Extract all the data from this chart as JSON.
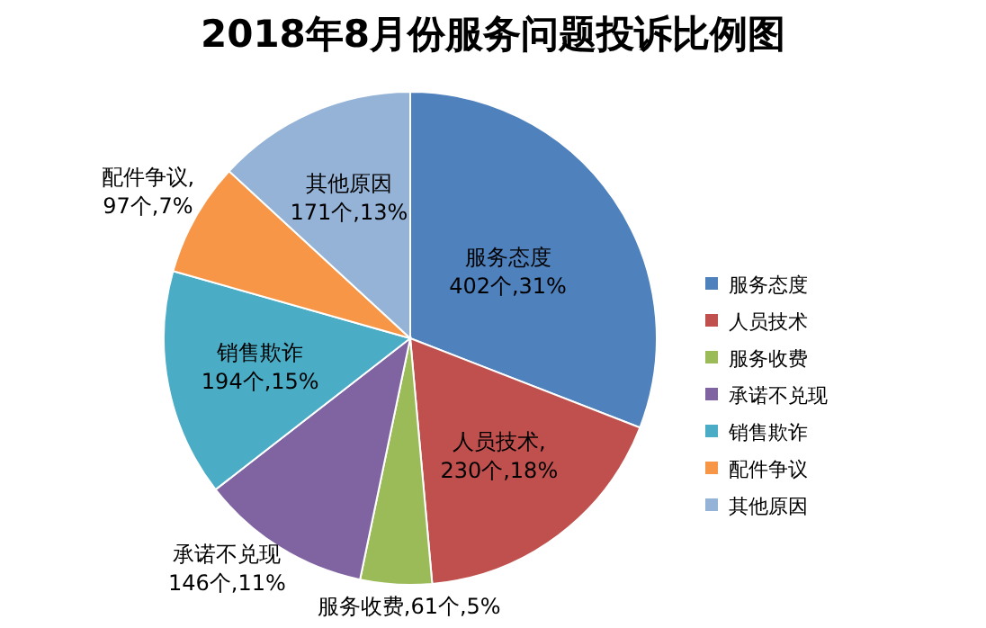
{
  "chart_data": {
    "type": "pie",
    "title": "2018年8月份服务问题投诉比例图",
    "categories": [
      "服务态度",
      "人员技术",
      "服务收费",
      "承诺不兑现",
      "销售欺诈",
      "配件争议",
      "其他原因"
    ],
    "values": [
      402,
      230,
      61,
      146,
      194,
      97,
      171
    ],
    "colors": [
      "#4f81bd",
      "#c0504d",
      "#9bbb59",
      "#8064a2",
      "#4bacc6",
      "#f79646",
      "#95b3d7"
    ],
    "value_labels": [
      "服务态度\n402个,31%",
      "人员技术,\n230个,18%",
      "服务收费,61个,5%",
      "承诺不兑现\n146个,11%",
      "销售欺诈\n194个,15%",
      "配件争议,\n97个,7%",
      "其他原因\n171个,13%"
    ],
    "legend": "right"
  }
}
